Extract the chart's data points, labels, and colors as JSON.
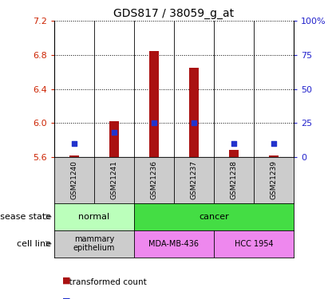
{
  "title": "GDS817 / 38059_g_at",
  "samples": [
    "GSM21240",
    "GSM21241",
    "GSM21236",
    "GSM21237",
    "GSM21238",
    "GSM21239"
  ],
  "red_values": [
    5.62,
    6.02,
    6.85,
    6.65,
    5.68,
    5.62
  ],
  "blue_values_pct": [
    10,
    18,
    25,
    25,
    10,
    10
  ],
  "ylim": [
    5.6,
    7.2
  ],
  "yticks_left": [
    5.6,
    6.0,
    6.4,
    6.8,
    7.2
  ],
  "yticks_right": [
    0,
    25,
    50,
    75,
    100
  ],
  "colors": {
    "red_bar": "#aa1111",
    "blue_square": "#2233cc",
    "normal_bg": "#bbffbb",
    "cancer_bg": "#44dd44",
    "mammary_bg": "#cccccc",
    "mda_bg": "#ee88ee",
    "hcc_bg": "#ee88ee",
    "sample_bg": "#cccccc",
    "text_left_axis": "#cc2200",
    "text_right_axis": "#2222cc"
  },
  "baseline": 5.6,
  "bar_width": 0.25
}
